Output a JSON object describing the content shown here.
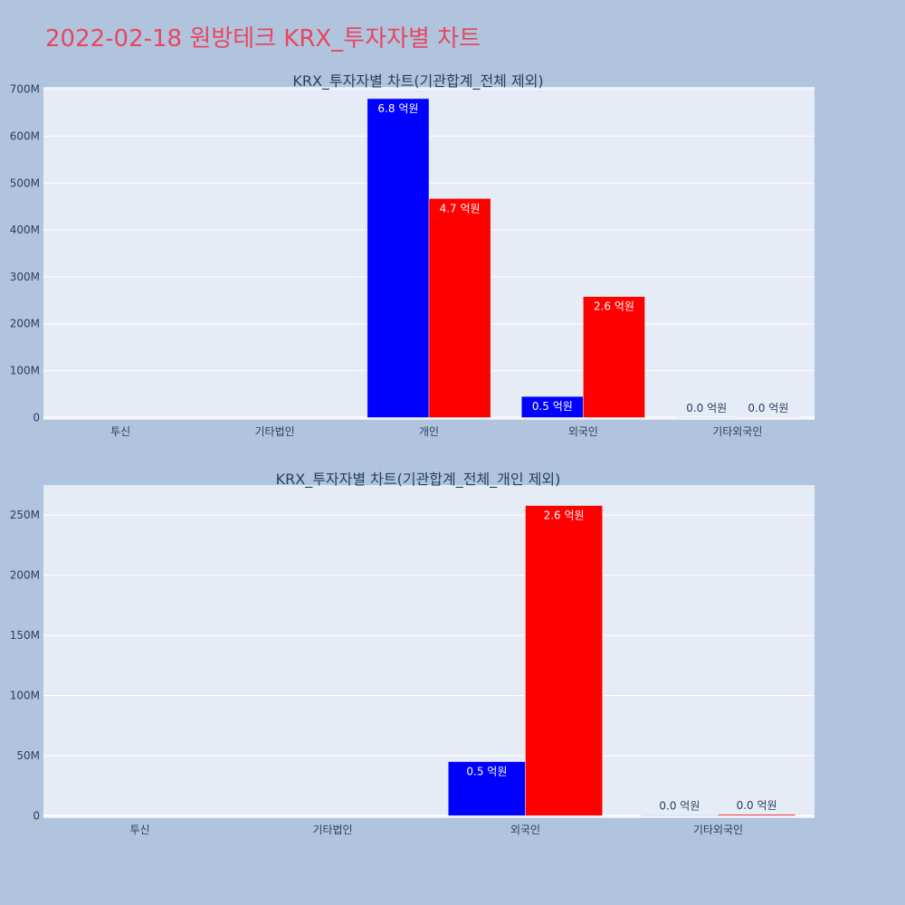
{
  "page": {
    "title": "2022-02-18 원방테크 KRX_투자자별 차트"
  },
  "colors": {
    "background": "#b0c4de",
    "plot_bg": "#e5ecf6",
    "title": "#e8475f",
    "series_a": "#0000ff",
    "series_b": "#ff0000",
    "text": "#2a3f5f"
  },
  "chart_data": [
    {
      "type": "bar",
      "title": "KRX_투자자별 차트(기관합계_전체 제외)",
      "categories": [
        "투신",
        "기타법인",
        "개인",
        "외국인",
        "기타외국인"
      ],
      "yticks": [
        0,
        100000000,
        200000000,
        300000000,
        400000000,
        500000000,
        600000000,
        700000000
      ],
      "ytick_labels": [
        "0",
        "100M",
        "200M",
        "300M",
        "400M",
        "500M",
        "600M",
        "700M"
      ],
      "ylim": [
        -5000000,
        705000000
      ],
      "grid": true,
      "series": [
        {
          "color": "#0000ff",
          "values": [
            0,
            0,
            680000000,
            45000000,
            500000
          ],
          "labels": [
            "",
            "",
            "6.8 억원",
            "0.5 억원",
            "0.0 억원"
          ]
        },
        {
          "color": "#ff0000",
          "values": [
            0,
            0,
            467000000,
            258000000,
            1000000
          ],
          "labels": [
            "",
            "",
            "4.7 억원",
            "2.6 억원",
            "0.0 억원"
          ]
        }
      ]
    },
    {
      "type": "bar",
      "title": "KRX_투자자별 차트(기관합계_전체_개인 제외)",
      "categories": [
        "투신",
        "기타법인",
        "외국인",
        "기타외국인"
      ],
      "yticks": [
        0,
        50000000,
        100000000,
        150000000,
        200000000,
        250000000
      ],
      "ytick_labels": [
        "0",
        "50M",
        "100M",
        "150M",
        "200M",
        "250M"
      ],
      "ylim": [
        -2000000,
        275000000
      ],
      "grid": true,
      "series": [
        {
          "color": "#0000ff",
          "values": [
            0,
            0,
            45000000,
            500000
          ],
          "labels": [
            "",
            "",
            "0.5 억원",
            "0.0 억원"
          ]
        },
        {
          "color": "#ff0000",
          "values": [
            0,
            0,
            258000000,
            1000000
          ],
          "labels": [
            "",
            "",
            "2.6 억원",
            "0.0 억원"
          ]
        }
      ]
    }
  ]
}
